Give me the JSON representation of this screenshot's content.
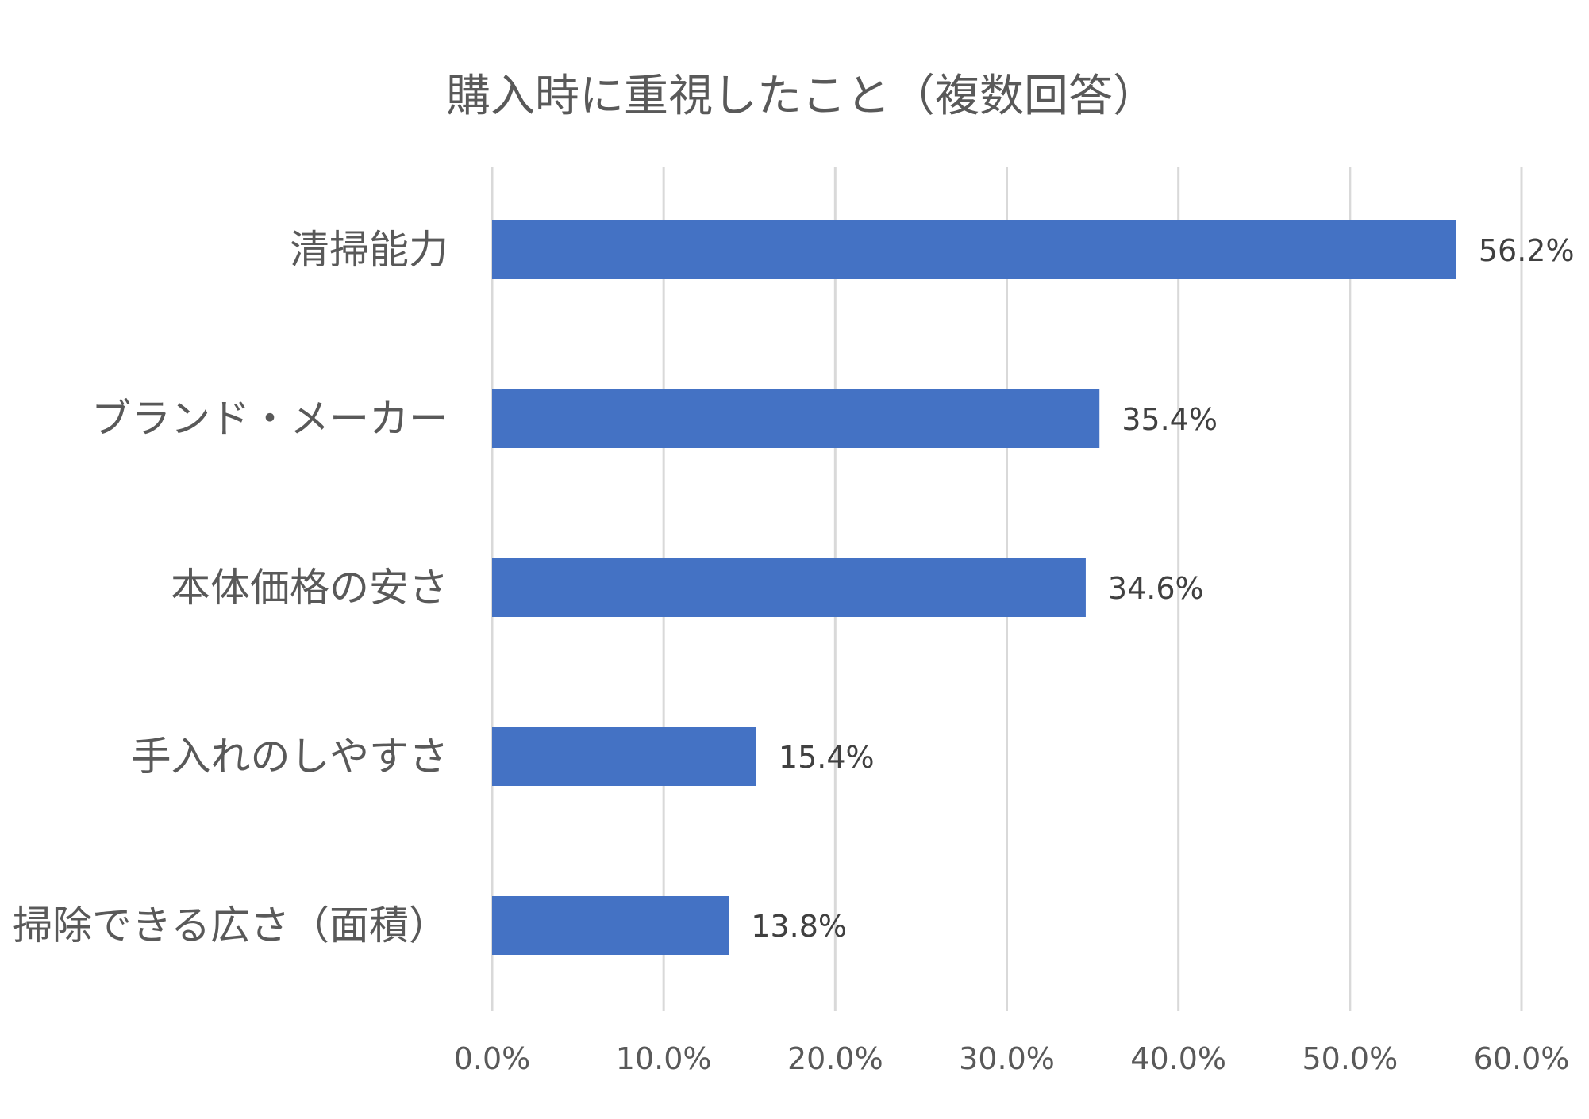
{
  "chart_data": {
    "type": "bar",
    "orientation": "horizontal",
    "title": "購入時に重視したこと（複数回答）",
    "categories": [
      "清掃能力",
      "ブランド・メーカー",
      "本体価格の安さ",
      "手入れのしやすさ",
      "掃除できる広さ（面積）"
    ],
    "values": [
      56.2,
      35.4,
      34.6,
      15.4,
      13.8
    ],
    "value_labels": [
      "56.2%",
      "35.4%",
      "34.6%",
      "15.4%",
      "13.8%"
    ],
    "xlim": [
      0,
      60
    ],
    "x_ticks": [
      0,
      10,
      20,
      30,
      40,
      50,
      60
    ],
    "x_tick_labels": [
      "0.0%",
      "10.0%",
      "20.0%",
      "30.0%",
      "40.0%",
      "50.0%",
      "60.0%"
    ],
    "xlabel": "",
    "ylabel": "",
    "grid": true,
    "legend": "none",
    "bar_color": "#4472c4"
  }
}
